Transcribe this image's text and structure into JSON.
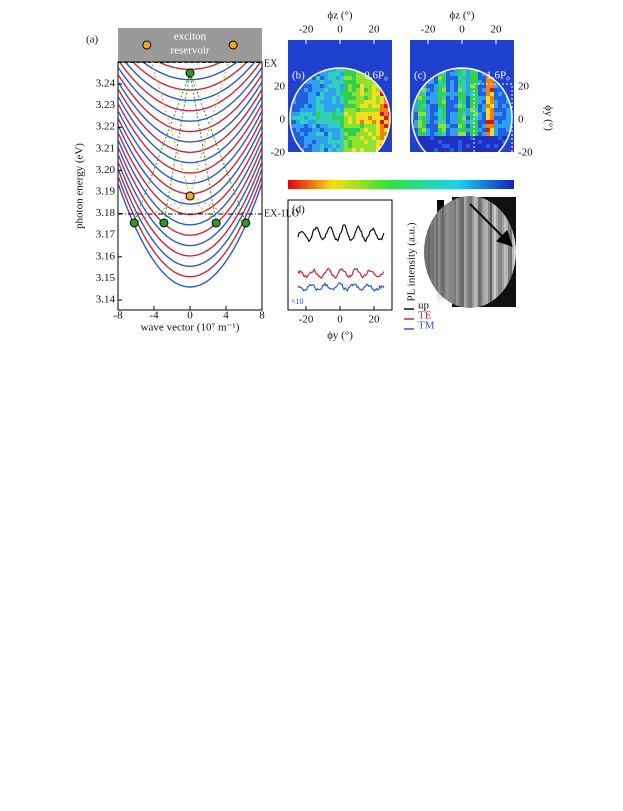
{
  "panel_a": {
    "label": "(a)",
    "reservoir_line1": "exciton",
    "reservoir_line2": "reservoir",
    "yticks": [
      "3.24",
      "3.22",
      "3.20",
      "3.18",
      "3.16",
      "3.14"
    ],
    "yticks_minor": [
      "3.23",
      "3.21",
      "3.19",
      "3.17",
      "3.15"
    ],
    "xticks": [
      "-8",
      "-4",
      "0",
      "4",
      "8"
    ],
    "ylabel": "photon energy (eV)",
    "xlabel": "wave vector (10⁷ m⁻¹)",
    "ex_label": "EX",
    "exlo_label": "EX-1LO"
  },
  "panel_b": {
    "label": "(b)",
    "power": "0.6P₀",
    "top_axis": "ϕz (°)",
    "xticks": [
      "-20",
      "0",
      "20"
    ],
    "yticks": [
      "20",
      "0",
      "-20"
    ]
  },
  "panel_c": {
    "label": "(c)",
    "power": "1.6P₀",
    "top_axis": "ϕz (°)",
    "xticks": [
      "-20",
      "0",
      "20"
    ],
    "yticks": [
      "20",
      "0",
      "-20"
    ],
    "right_axis": "ϕy (°)"
  },
  "panel_d": {
    "label": "(d)",
    "xticks": [
      "-20",
      "0",
      "20"
    ],
    "xlabel": "ϕy (°)",
    "scale_note": "×10",
    "ylabel": "PL intensity (a.u.)",
    "legend": [
      "up",
      "TE",
      "TM"
    ]
  }
}
